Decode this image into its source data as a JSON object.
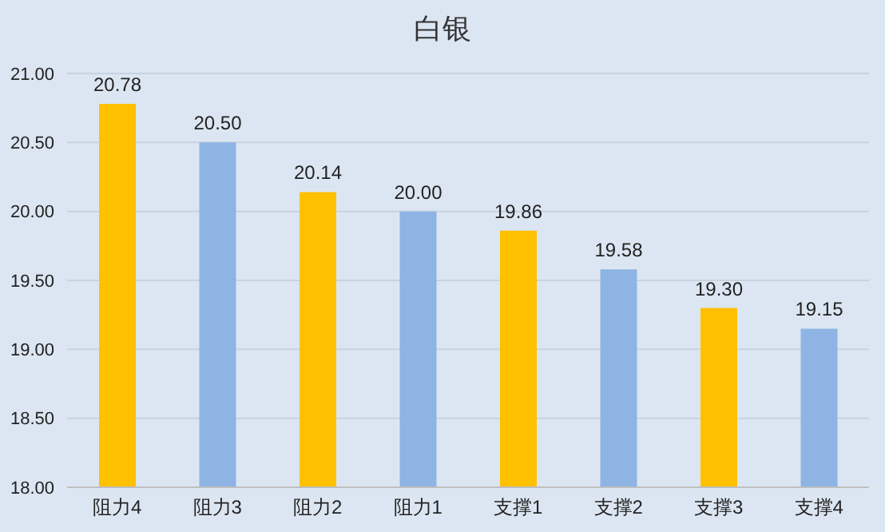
{
  "chart_data": {
    "type": "bar",
    "title": "白银",
    "categories": [
      "阻力4",
      "阻力3",
      "阻力2",
      "阻力1",
      "支撑1",
      "支撑2",
      "支撑3",
      "支撑4"
    ],
    "values": [
      20.78,
      20.5,
      20.14,
      20.0,
      19.86,
      19.58,
      19.3,
      19.15
    ],
    "colors": [
      "#ffc000",
      "#8eb4e3",
      "#ffc000",
      "#8eb4e3",
      "#ffc000",
      "#8eb4e3",
      "#ffc000",
      "#8eb4e3"
    ],
    "value_labels": [
      "20.78",
      "20.50",
      "20.14",
      "20.00",
      "19.86",
      "19.58",
      "19.30",
      "19.15"
    ],
    "ylim": [
      18,
      21
    ],
    "yticks": [
      {
        "value": 18,
        "label": "18.00"
      },
      {
        "value": 18.5,
        "label": "18.50"
      },
      {
        "value": 19,
        "label": "19.00"
      },
      {
        "value": 19.5,
        "label": "19.50"
      },
      {
        "value": 20,
        "label": "20.00"
      },
      {
        "value": 20.5,
        "label": "20.50"
      },
      {
        "value": 21,
        "label": "21.00"
      }
    ],
    "grid": "y",
    "legend": false
  }
}
